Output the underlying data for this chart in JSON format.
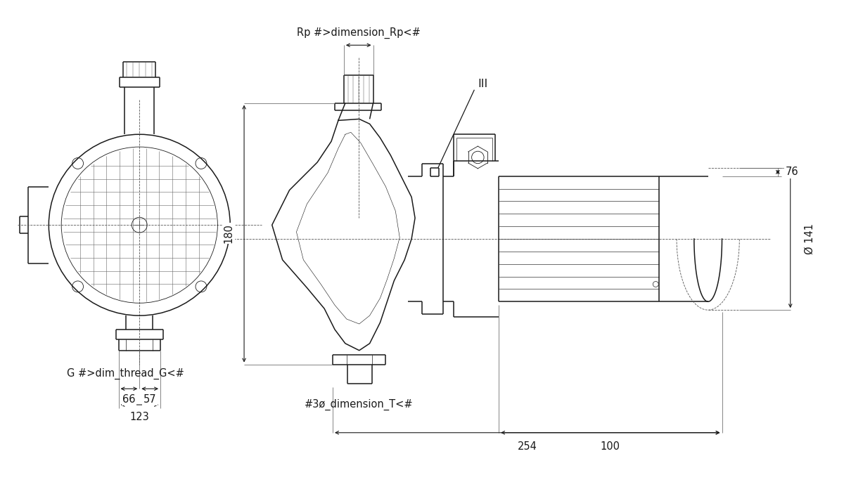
{
  "background_color": "#ffffff",
  "line_color": "#1a1a1a",
  "lw": 1.1,
  "tlw": 0.6,
  "fig_width": 12.0,
  "fig_height": 6.86,
  "dpi": 100,
  "annotations": {
    "rp_label": "Rp #>dimension_Rp<#",
    "g_label": "G #>dim_thread_G<#",
    "t_label": "#3ø_dimension_T<#",
    "iii_label": "III",
    "dim_180": "180",
    "dim_76": "76",
    "dim_phi141": "Ø 141",
    "dim_66": "66",
    "dim_57": "57",
    "dim_123": "123",
    "dim_100": "100",
    "dim_254": "254"
  },
  "font_size": 10.5,
  "font_family": "DejaVu Sans"
}
